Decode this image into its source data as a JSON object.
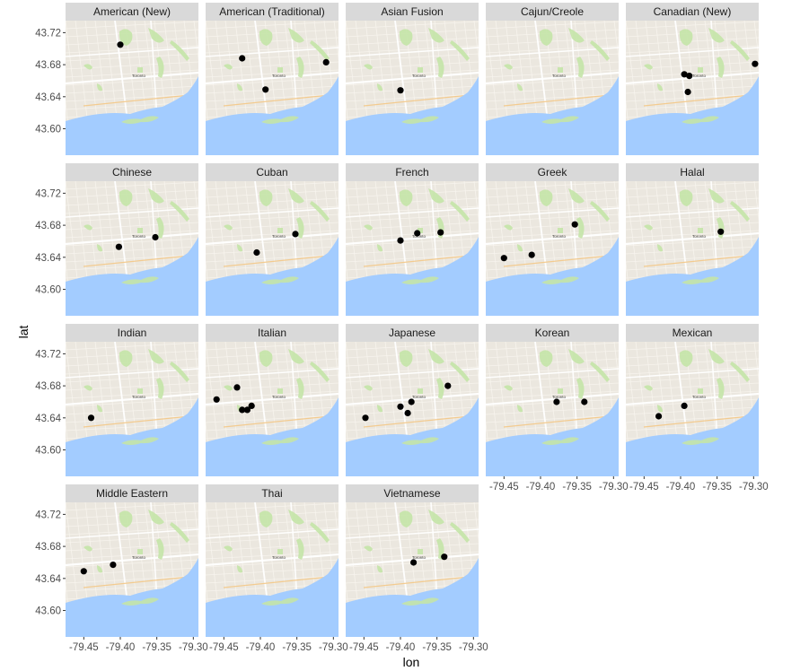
{
  "chart_data": {
    "type": "scatter",
    "title": "",
    "xlabel": "lon",
    "ylabel": "lat",
    "xlim": [
      -79.475,
      -79.293
    ],
    "ylim": [
      43.567,
      43.735
    ],
    "x_ticks": [
      -79.45,
      -79.4,
      -79.35,
      -79.3
    ],
    "x_tick_labels": [
      "-79.45",
      "-79.40",
      "-79.35",
      "-79.30"
    ],
    "y_ticks": [
      43.6,
      43.64,
      43.68,
      43.72
    ],
    "y_tick_labels": [
      "43.60",
      "43.64",
      "43.68",
      "43.72"
    ],
    "background": "map of Toronto",
    "map_label": "Toronto",
    "map_colors": {
      "water": "#a3ccff",
      "land": "#ebe7df",
      "park": "#c5e5a8",
      "road": "#ffffff",
      "strip": "#d9d9d9"
    },
    "point_color": "#000000",
    "panels": [
      {
        "name": "American (New)",
        "points": [
          [
            -79.4,
            43.705
          ]
        ]
      },
      {
        "name": "American (Traditional)",
        "points": [
          [
            -79.425,
            43.688
          ],
          [
            -79.393,
            43.649
          ],
          [
            -79.31,
            43.683
          ]
        ]
      },
      {
        "name": "Asian Fusion",
        "points": [
          [
            -79.4,
            43.648
          ]
        ]
      },
      {
        "name": "Cajun/Creole",
        "points": []
      },
      {
        "name": "Canadian (New)",
        "points": [
          [
            -79.395,
            43.668
          ],
          [
            -79.388,
            43.666
          ],
          [
            -79.39,
            43.646
          ],
          [
            -79.298,
            43.681
          ]
        ]
      },
      {
        "name": "Chinese",
        "points": [
          [
            -79.402,
            43.653
          ],
          [
            -79.352,
            43.665
          ]
        ]
      },
      {
        "name": "Cuban",
        "points": [
          [
            -79.405,
            43.646
          ],
          [
            -79.352,
            43.669
          ]
        ]
      },
      {
        "name": "French",
        "points": [
          [
            -79.4,
            43.661
          ],
          [
            -79.377,
            43.67
          ],
          [
            -79.345,
            43.671
          ]
        ]
      },
      {
        "name": "Greek",
        "points": [
          [
            -79.45,
            43.639
          ],
          [
            -79.412,
            43.643
          ],
          [
            -79.353,
            43.681
          ]
        ]
      },
      {
        "name": "Halal",
        "points": [
          [
            -79.345,
            43.672
          ]
        ]
      },
      {
        "name": "Indian",
        "points": [
          [
            -79.44,
            43.64
          ]
        ]
      },
      {
        "name": "Italian",
        "points": [
          [
            -79.46,
            43.663
          ],
          [
            -79.432,
            43.678
          ],
          [
            -79.425,
            43.65
          ],
          [
            -79.418,
            43.65
          ],
          [
            -79.412,
            43.655
          ]
        ]
      },
      {
        "name": "Japanese",
        "points": [
          [
            -79.448,
            43.64
          ],
          [
            -79.4,
            43.654
          ],
          [
            -79.39,
            43.646
          ],
          [
            -79.385,
            43.66
          ],
          [
            -79.335,
            43.68
          ]
        ]
      },
      {
        "name": "Korean",
        "points": [
          [
            -79.378,
            43.66
          ],
          [
            -79.34,
            43.66
          ]
        ]
      },
      {
        "name": "Mexican",
        "points": [
          [
            -79.43,
            43.642
          ],
          [
            -79.395,
            43.655
          ]
        ]
      },
      {
        "name": "Middle Eastern",
        "points": [
          [
            -79.45,
            43.649
          ],
          [
            -79.41,
            43.657
          ]
        ]
      },
      {
        "name": "Thai",
        "points": []
      },
      {
        "name": "Vietnamese",
        "points": [
          [
            -79.382,
            43.66
          ],
          [
            -79.34,
            43.667
          ]
        ]
      }
    ]
  }
}
